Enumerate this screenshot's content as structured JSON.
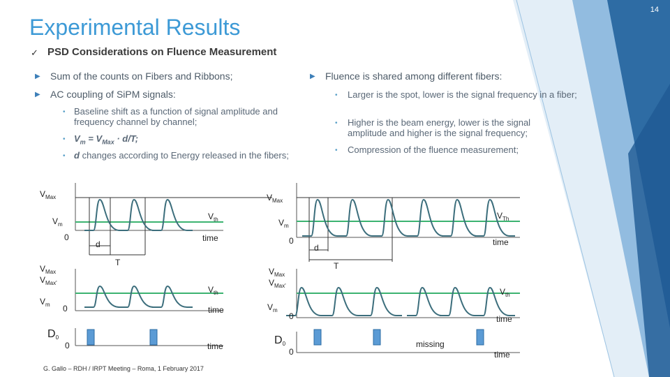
{
  "page_number": "14",
  "header": {
    "title": "Experimental Results",
    "subtitle": "PSD Considerations on Fluence Measurement"
  },
  "left_bullets": {
    "items": [
      "Sum of the counts on Fibers and Ribbons;",
      "AC coupling of SiPM signals:"
    ],
    "sub_items": [
      {
        "text": "Baseline shift as a function of signal amplitude and frequency channel by channel;"
      },
      {
        "parts": [
          "V",
          "m",
          " = V",
          "Max",
          " · d/T;"
        ]
      },
      {
        "var": "d",
        "text": " changes according to Energy released in the fibers;"
      }
    ]
  },
  "right_bullets": {
    "item": "Fluence is shared among different fibers:",
    "sub_items": [
      "Larger is the spot, lower is the signal frequency in a fiber;",
      "Higher is the beam energy, lower is the signal amplitude and higher is the signal frequency;",
      "Compression of the fluence measurement;"
    ]
  },
  "diagram_left": {
    "labels": [
      {
        "text": "V",
        "sub": "Max"
      },
      {
        "text": "V",
        "sub": "m"
      },
      {
        "text": "0"
      },
      {
        "text": "d"
      },
      {
        "text": "V",
        "sub": "th"
      },
      {
        "text": "time"
      },
      {
        "text": "T"
      },
      {
        "text": "V",
        "sub": "Max"
      },
      {
        "text": "V",
        "sub": "Max'"
      },
      {
        "text": "V",
        "sub": "m"
      },
      {
        "text": "0"
      },
      {
        "text": "V",
        "sub": "th"
      },
      {
        "text": "time"
      },
      {
        "text": "D",
        "sub": "0"
      },
      {
        "text": "0"
      },
      {
        "text": "time"
      }
    ]
  },
  "diagram_right": {
    "labels": [
      {
        "text": "V",
        "sub": "Max"
      },
      {
        "text": "V",
        "sub": "Th"
      },
      {
        "text": "V",
        "sub": "m"
      },
      {
        "text": "0"
      },
      {
        "text": "d"
      },
      {
        "text": "time"
      },
      {
        "text": "T"
      },
      {
        "text": "V",
        "sub": "Max"
      },
      {
        "text": "V",
        "sub": "Max'"
      },
      {
        "text": "V",
        "sub": "th"
      },
      {
        "text": "V",
        "sub": "m"
      },
      {
        "text": "0"
      },
      {
        "text": "time"
      },
      {
        "text": "D",
        "sub": "0"
      },
      {
        "text": "0"
      },
      {
        "text": "missing"
      },
      {
        "text": "time"
      }
    ]
  },
  "footer": "G. Gallo – RDH / IRPT Meeting – Roma, 1 February 2017"
}
